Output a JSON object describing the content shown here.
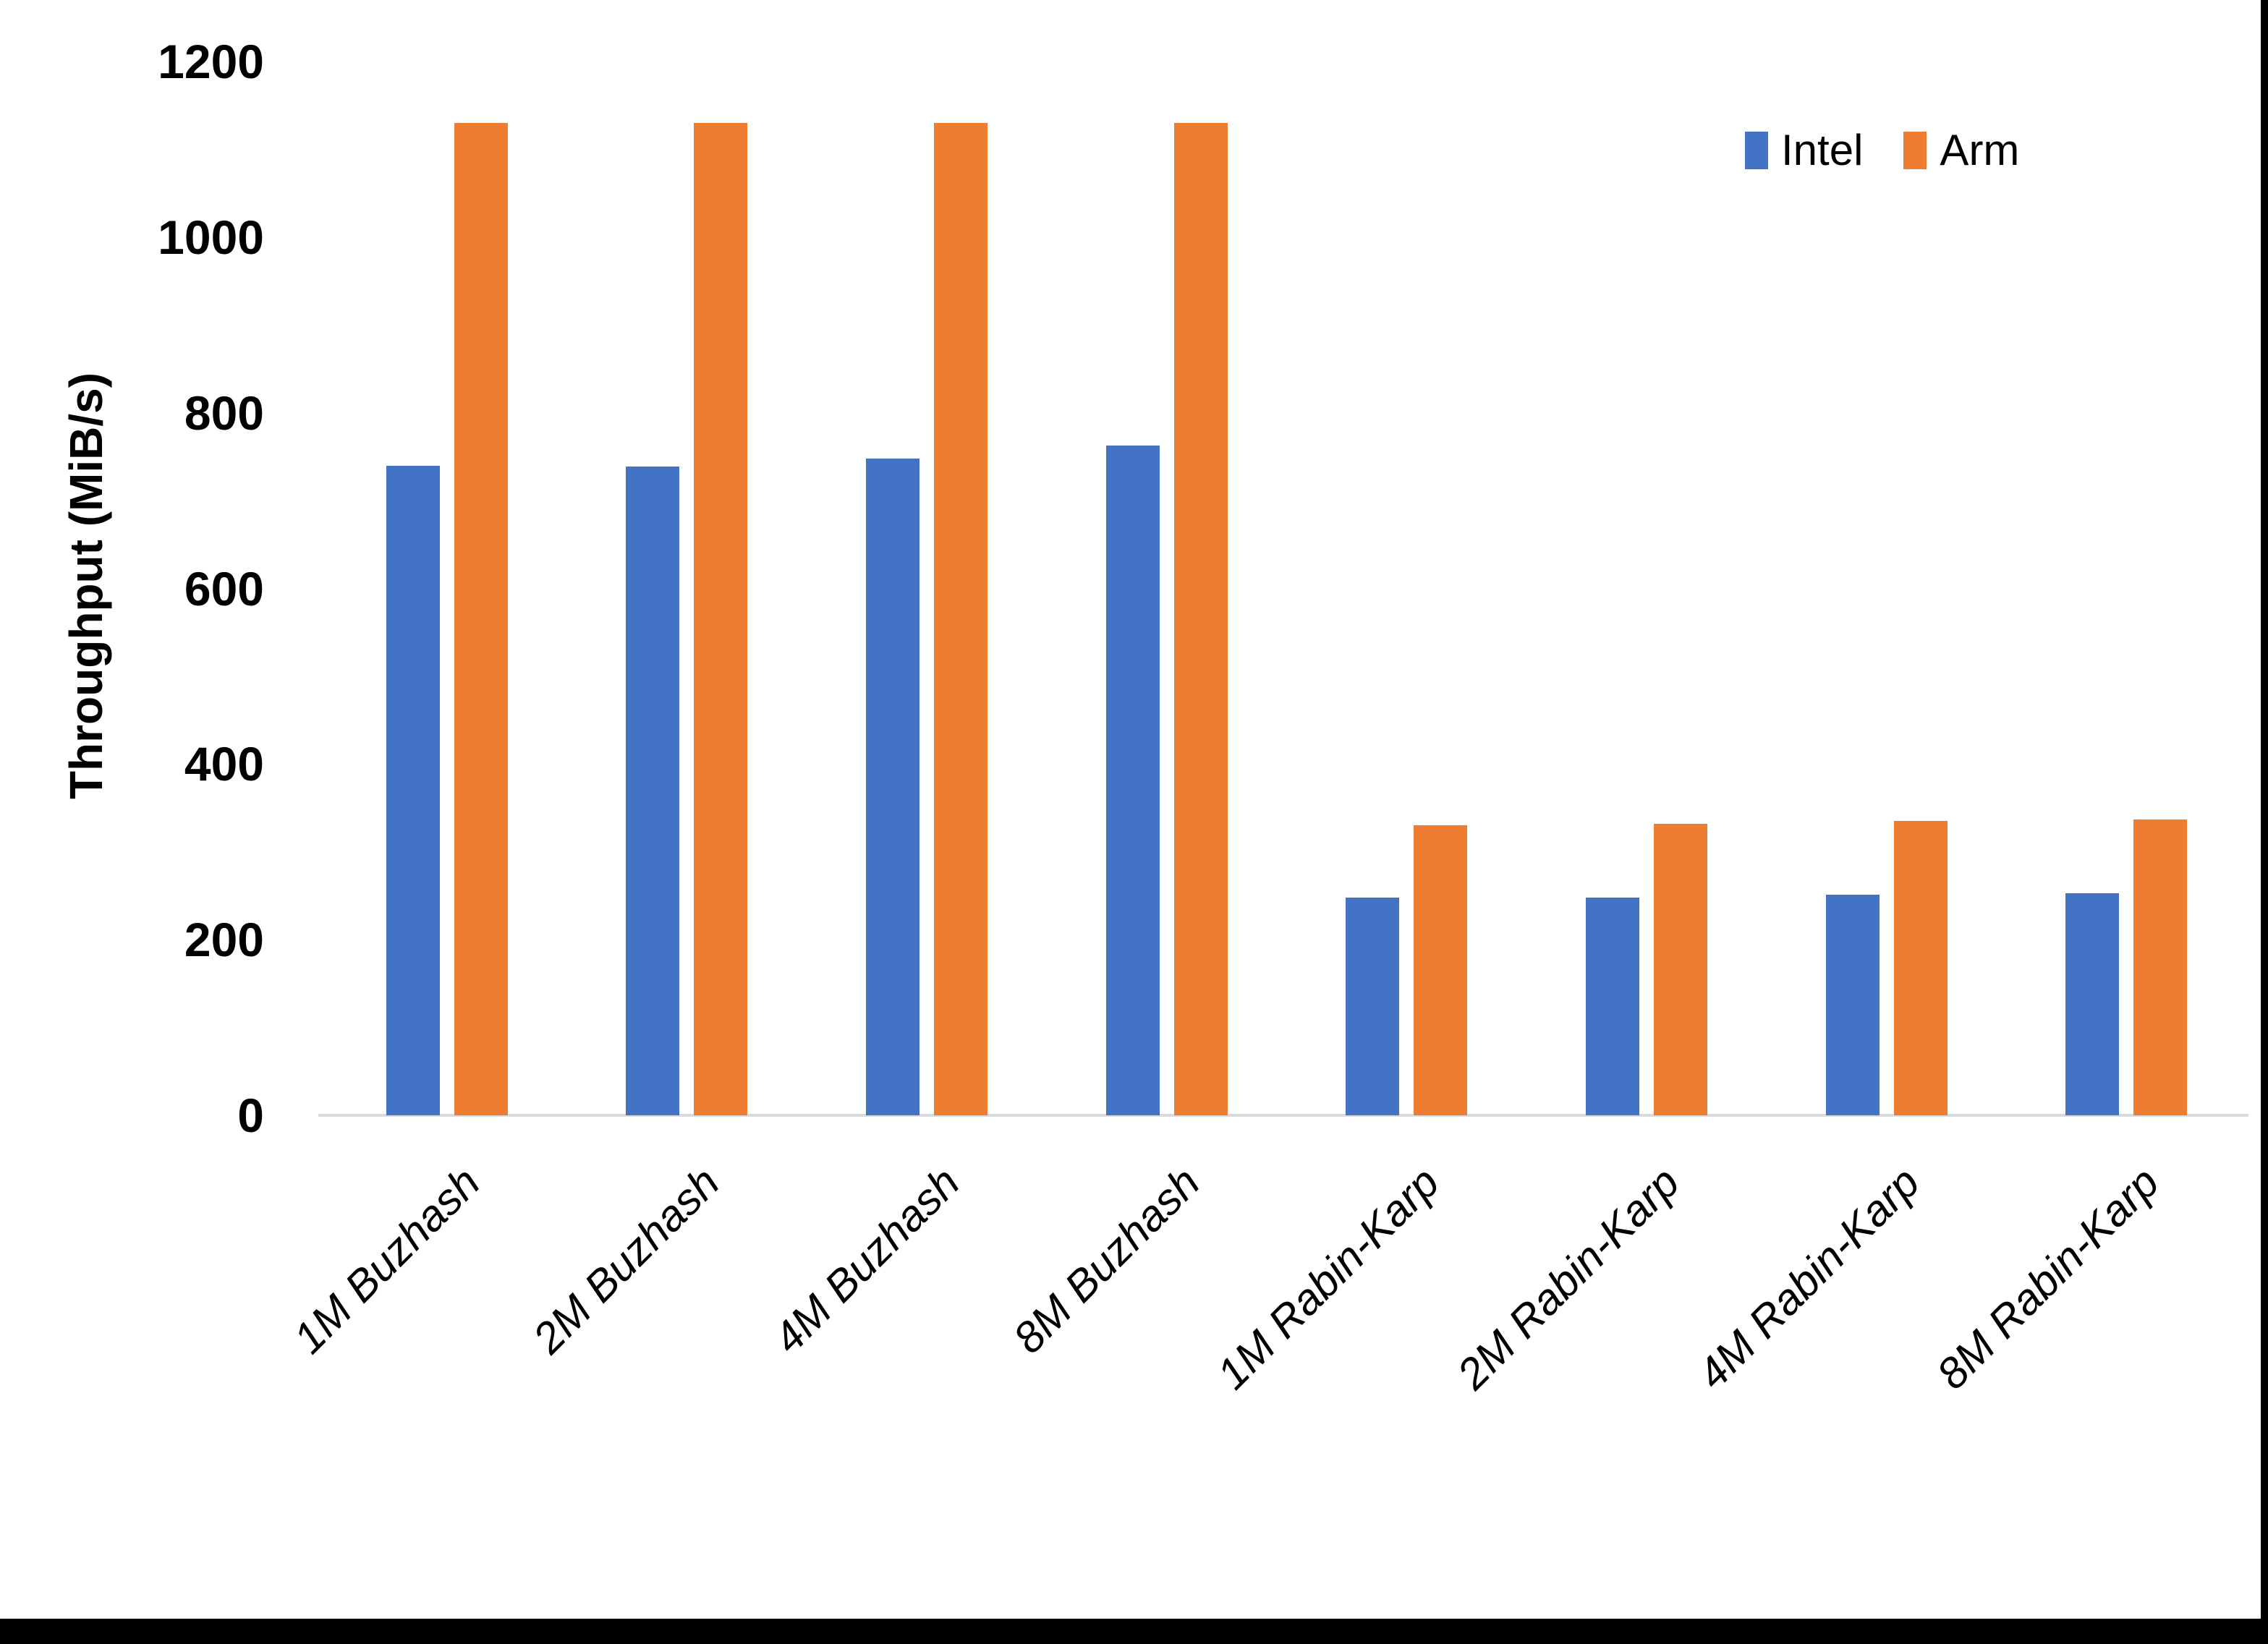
{
  "chart_data": {
    "type": "bar",
    "title": "",
    "xlabel": "",
    "ylabel": "Throughput (MiB/s)",
    "ylim": [
      0,
      1200
    ],
    "yticks": [
      0,
      200,
      400,
      600,
      800,
      1000,
      1200
    ],
    "grid": false,
    "legend_position": "top-right",
    "categories": [
      "1M Buzhash",
      "2M Buzhash",
      "4M Buzhash",
      "8M Buzhash",
      "1M Rabin-Karp",
      "2M Rabin-Karp",
      "4M Rabin-Karp",
      "8M Rabin-Karp"
    ],
    "series": [
      {
        "name": "Intel",
        "color": "#4472C4",
        "values": [
          740,
          739,
          748,
          763,
          248,
          248,
          251,
          253
        ]
      },
      {
        "name": "Arm",
        "color": "#ED7D31",
        "values": [
          1130,
          1130,
          1130,
          1130,
          330,
          332,
          335,
          337
        ]
      }
    ]
  },
  "colors": {
    "axis_line": "#D9D9D9",
    "text": "#000000",
    "frame": "#000000"
  }
}
